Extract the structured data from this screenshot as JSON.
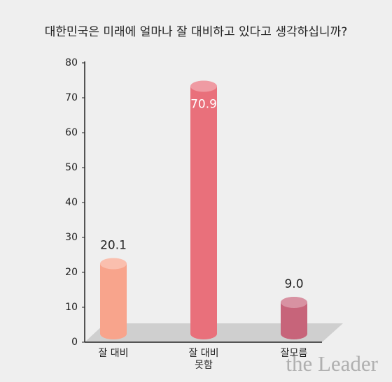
{
  "chart_data": {
    "type": "cylinder-bar",
    "title": "대한민국은 미래에 얼마나 잘 대비하고 있다고 생각하십니까?",
    "categories": [
      "잘 대비",
      "잘 대비\n못함",
      "잘모름"
    ],
    "values": [
      20.1,
      70.9,
      9.0
    ],
    "value_labels": [
      "20.1",
      "70.9",
      "9.0"
    ],
    "colors": [
      "#f8a48c",
      "#e9707b",
      "#c7647a"
    ],
    "ylim": [
      0,
      80
    ],
    "yticks": [
      0,
      10,
      20,
      30,
      40,
      50,
      60,
      70,
      80
    ],
    "watermark": "the Leader"
  }
}
